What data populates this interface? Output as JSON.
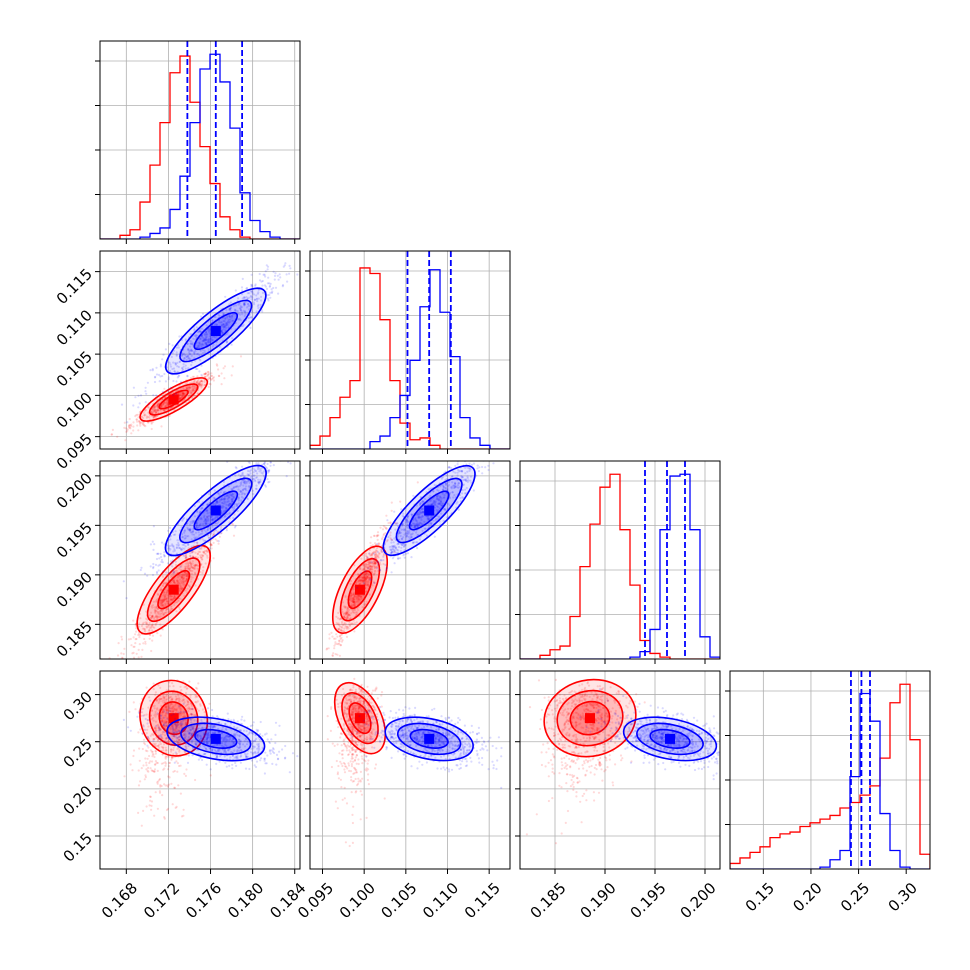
{
  "chart_data": {
    "type": "corner",
    "colors": {
      "red": "#ff0000",
      "blue": "#0000ff"
    },
    "grid": true,
    "parameters": [
      {
        "range": [
          0.1655,
          0.1845
        ],
        "ticks": [
          "0.168",
          "0.172",
          "0.176",
          "0.180",
          "0.184"
        ]
      },
      {
        "range": [
          0.0935,
          0.1175
        ],
        "ticks": [
          "0.095",
          "0.100",
          "0.105",
          "0.110",
          "0.115"
        ]
      },
      {
        "range": [
          0.1815,
          0.2015
        ],
        "ticks": [
          "0.185",
          "0.190",
          "0.195",
          "0.200"
        ]
      },
      {
        "range": [
          0.115,
          0.325
        ],
        "ticks": [
          "0.15",
          "0.20",
          "0.25",
          "0.30"
        ]
      }
    ],
    "series": [
      {
        "color": "red",
        "means": [
          0.1725,
          0.0995,
          0.1885,
          0.283
        ],
        "stds": [
          0.0015,
          0.0012,
          0.0022,
          0.035
        ],
        "hist": [
          [
            0,
            0,
            0.02,
            0.05,
            0.2,
            0.4,
            0.63,
            0.9,
            0.99,
            0.74,
            0.5,
            0.3,
            0.12,
            0.05,
            0.01,
            0,
            0,
            0,
            0,
            0
          ],
          [
            0.02,
            0.07,
            0.17,
            0.28,
            0.37,
            0.98,
            0.95,
            0.7,
            0.37,
            0.14,
            0.05,
            0.06,
            0.02,
            0,
            0,
            0,
            0,
            0,
            0,
            0
          ],
          [
            0,
            0,
            0.02,
            0.05,
            0.07,
            0.23,
            0.5,
            0.73,
            0.93,
            1.0,
            0.7,
            0.4,
            0.1,
            0.03,
            0.01,
            0,
            0,
            0,
            0,
            0
          ],
          [
            0.03,
            0.06,
            0.09,
            0.12,
            0.17,
            0.19,
            0.2,
            0.23,
            0.25,
            0.27,
            0.29,
            0.33,
            0.36,
            0.4,
            0.45,
            0.6,
            0.9,
            1.0,
            0.7,
            0.08
          ]
        ]
      },
      {
        "color": "blue",
        "means": [
          0.1765,
          0.1078,
          0.1965,
          0.253
        ],
        "stds": [
          0.0022,
          0.0025,
          0.0022,
          0.01
        ],
        "quantiles": [
          [
            0.1738,
            0.1765,
            0.179
          ],
          [
            0.1052,
            0.1078,
            0.1104
          ],
          [
            0.194,
            0.1962,
            0.198
          ],
          [
            0.242,
            0.253,
            0.262
          ]
        ],
        "hist": [
          [
            0,
            0,
            0,
            0,
            0.01,
            0.03,
            0.06,
            0.16,
            0.34,
            0.63,
            0.92,
            1.0,
            0.85,
            0.6,
            0.25,
            0.1,
            0.04,
            0.01,
            0,
            0
          ],
          [
            0,
            0,
            0,
            0,
            0,
            0,
            0.04,
            0.07,
            0.17,
            0.29,
            0.48,
            0.77,
            0.97,
            0.74,
            0.5,
            0.17,
            0.06,
            0.02,
            0,
            0
          ],
          [
            0,
            0,
            0,
            0,
            0,
            0,
            0,
            0,
            0,
            0,
            0,
            0.01,
            0.04,
            0.16,
            0.7,
            0.99,
            1.0,
            0.7,
            0.12,
            0.01
          ],
          [
            0,
            0,
            0,
            0,
            0,
            0,
            0,
            0,
            0,
            0.01,
            0.05,
            0.1,
            0.5,
            0.95,
            0.8,
            0.3,
            0.1,
            0.01,
            0,
            0
          ]
        ]
      }
    ]
  }
}
